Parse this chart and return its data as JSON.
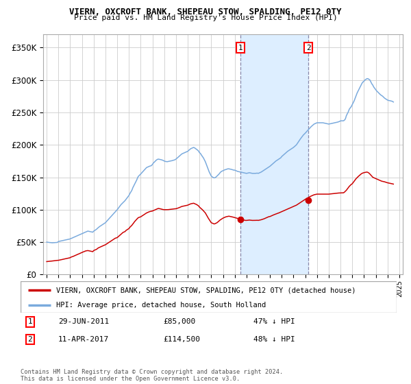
{
  "title": "VIERN, OXCROFT BANK, SHEPEAU STOW, SPALDING, PE12 0TY",
  "subtitle": "Price paid vs. HM Land Registry's House Price Index (HPI)",
  "ylim": [
    0,
    370000
  ],
  "yticks": [
    0,
    50000,
    100000,
    150000,
    200000,
    250000,
    300000,
    350000
  ],
  "ytick_labels": [
    "£0",
    "£50K",
    "£100K",
    "£150K",
    "£200K",
    "£250K",
    "£300K",
    "£350K"
  ],
  "sale1_date": "29-JUN-2011",
  "sale1_price": 85000,
  "sale1_label": "47% ↓ HPI",
  "sale2_date": "11-APR-2017",
  "sale2_price": 114500,
  "sale2_label": "48% ↓ HPI",
  "legend_property": "VIERN, OXCROFT BANK, SHEPEAU STOW, SPALDING, PE12 0TY (detached house)",
  "legend_hpi": "HPI: Average price, detached house, South Holland",
  "footnote": "Contains HM Land Registry data © Crown copyright and database right 2024.\nThis data is licensed under the Open Government Licence v3.0.",
  "property_color": "#cc0000",
  "hpi_color": "#7aaadd",
  "shade_color": "#ddeeff",
  "vline_color": "#8888aa",
  "grid_color": "#cccccc",
  "hpi_data": {
    "1995-01": 50000,
    "1995-02": 49800,
    "1995-03": 49600,
    "1995-04": 49500,
    "1995-05": 49300,
    "1995-06": 49100,
    "1995-07": 49000,
    "1995-08": 49100,
    "1995-09": 49150,
    "1995-10": 49200,
    "1995-11": 49400,
    "1995-12": 49600,
    "1996-01": 51000,
    "1996-02": 51300,
    "1996-03": 51600,
    "1996-04": 52000,
    "1996-05": 52300,
    "1996-06": 52600,
    "1996-07": 53000,
    "1996-08": 53300,
    "1996-09": 53600,
    "1996-10": 54000,
    "1996-11": 54300,
    "1996-12": 54600,
    "1997-01": 55000,
    "1997-02": 55700,
    "1997-03": 56300,
    "1997-04": 57000,
    "1997-05": 57700,
    "1997-06": 58300,
    "1997-07": 59000,
    "1997-08": 59700,
    "1997-09": 60300,
    "1997-10": 61000,
    "1997-11": 61700,
    "1997-12": 62300,
    "1998-01": 63000,
    "1998-02": 63700,
    "1998-03": 64300,
    "1998-04": 65000,
    "1998-05": 65700,
    "1998-06": 66300,
    "1998-07": 67000,
    "1998-08": 66700,
    "1998-09": 66300,
    "1998-10": 66000,
    "1998-11": 65700,
    "1998-12": 65300,
    "1999-01": 67000,
    "1999-02": 67800,
    "1999-03": 69000,
    "1999-04": 70000,
    "1999-05": 71500,
    "1999-06": 72800,
    "1999-07": 74000,
    "1999-08": 75000,
    "1999-09": 76000,
    "1999-10": 77000,
    "1999-11": 78000,
    "1999-12": 79000,
    "2000-01": 80000,
    "2000-02": 81700,
    "2000-03": 83300,
    "2000-04": 85000,
    "2000-05": 86700,
    "2000-06": 88300,
    "2000-07": 90000,
    "2000-08": 91700,
    "2000-09": 93300,
    "2000-10": 95000,
    "2000-11": 96700,
    "2000-12": 98300,
    "2001-01": 100000,
    "2001-02": 102000,
    "2001-03": 104000,
    "2001-04": 106000,
    "2001-05": 108000,
    "2001-06": 109500,
    "2001-07": 111000,
    "2001-08": 112500,
    "2001-09": 114000,
    "2001-10": 116000,
    "2001-11": 118000,
    "2001-12": 120000,
    "2002-01": 122000,
    "2002-02": 125000,
    "2002-03": 127500,
    "2002-04": 130000,
    "2002-05": 134000,
    "2002-06": 137000,
    "2002-07": 140000,
    "2002-08": 143000,
    "2002-09": 146000,
    "2002-10": 150000,
    "2002-11": 152000,
    "2002-12": 153500,
    "2003-01": 155000,
    "2003-02": 156700,
    "2003-03": 158300,
    "2003-04": 160000,
    "2003-05": 161700,
    "2003-06": 163300,
    "2003-07": 165000,
    "2003-08": 165700,
    "2003-09": 166300,
    "2003-10": 167000,
    "2003-11": 167500,
    "2003-12": 168000,
    "2004-01": 170000,
    "2004-02": 172000,
    "2004-03": 173500,
    "2004-04": 175000,
    "2004-05": 176500,
    "2004-06": 177500,
    "2004-07": 178000,
    "2004-08": 177700,
    "2004-09": 177300,
    "2004-10": 177000,
    "2004-11": 176500,
    "2004-12": 176000,
    "2005-01": 175000,
    "2005-02": 174500,
    "2005-03": 174200,
    "2005-04": 174000,
    "2005-05": 174300,
    "2005-06": 174600,
    "2005-07": 175000,
    "2005-08": 175300,
    "2005-09": 175600,
    "2005-10": 176000,
    "2005-11": 176500,
    "2005-12": 177000,
    "2006-01": 178000,
    "2006-02": 179300,
    "2006-03": 180600,
    "2006-04": 182000,
    "2006-05": 183300,
    "2006-06": 184700,
    "2006-07": 186000,
    "2006-08": 186700,
    "2006-09": 187300,
    "2006-10": 188000,
    "2006-11": 188700,
    "2006-12": 189300,
    "2007-01": 190000,
    "2007-02": 191300,
    "2007-03": 192700,
    "2007-04": 194000,
    "2007-05": 194700,
    "2007-06": 195300,
    "2007-07": 196000,
    "2007-08": 195300,
    "2007-09": 194300,
    "2007-10": 193000,
    "2007-11": 192000,
    "2007-12": 190500,
    "2008-01": 188000,
    "2008-02": 186700,
    "2008-03": 184300,
    "2008-04": 182000,
    "2008-05": 180000,
    "2008-06": 177000,
    "2008-07": 174000,
    "2008-08": 170000,
    "2008-09": 166000,
    "2008-10": 162000,
    "2008-11": 158000,
    "2008-12": 155000,
    "2009-01": 152000,
    "2009-02": 150700,
    "2009-03": 149700,
    "2009-04": 149000,
    "2009-05": 149500,
    "2009-06": 150500,
    "2009-07": 152000,
    "2009-08": 153500,
    "2009-09": 155000,
    "2009-10": 157000,
    "2009-11": 158500,
    "2009-12": 159500,
    "2010-01": 160000,
    "2010-02": 161000,
    "2010-03": 161500,
    "2010-04": 162000,
    "2010-05": 162500,
    "2010-06": 163000,
    "2010-07": 163000,
    "2010-08": 162700,
    "2010-09": 162300,
    "2010-10": 162000,
    "2010-11": 161500,
    "2010-12": 161000,
    "2011-01": 161000,
    "2011-02": 160300,
    "2011-03": 159700,
    "2011-04": 159000,
    "2011-05": 158700,
    "2011-06": 158300,
    "2011-07": 158000,
    "2011-08": 157700,
    "2011-09": 157300,
    "2011-10": 157000,
    "2011-11": 156700,
    "2011-12": 156300,
    "2012-01": 156000,
    "2012-02": 156300,
    "2012-03": 156700,
    "2012-04": 157000,
    "2012-05": 156700,
    "2012-06": 156300,
    "2012-07": 156000,
    "2012-08": 156000,
    "2012-09": 156000,
    "2012-10": 156000,
    "2012-11": 156200,
    "2012-12": 156400,
    "2013-01": 156000,
    "2013-02": 156700,
    "2013-03": 157300,
    "2013-04": 158000,
    "2013-05": 159000,
    "2013-06": 160000,
    "2013-07": 161000,
    "2013-08": 162000,
    "2013-09": 163000,
    "2013-10": 164000,
    "2013-11": 165000,
    "2013-12": 166000,
    "2014-01": 167000,
    "2014-02": 168300,
    "2014-03": 169700,
    "2014-04": 171000,
    "2014-05": 172300,
    "2014-06": 173700,
    "2014-07": 175000,
    "2014-08": 176000,
    "2014-09": 177000,
    "2014-10": 178000,
    "2014-11": 179000,
    "2014-12": 180000,
    "2015-01": 182000,
    "2015-02": 183300,
    "2015-03": 184700,
    "2015-04": 186000,
    "2015-05": 187300,
    "2015-06": 188700,
    "2015-07": 190000,
    "2015-08": 191000,
    "2015-09": 192000,
    "2015-10": 193000,
    "2015-11": 194000,
    "2015-12": 195000,
    "2016-01": 196000,
    "2016-02": 197300,
    "2016-03": 198700,
    "2016-04": 200000,
    "2016-05": 202300,
    "2016-06": 204700,
    "2016-07": 207000,
    "2016-08": 209000,
    "2016-09": 211000,
    "2016-10": 213000,
    "2016-11": 215000,
    "2016-12": 216500,
    "2017-01": 218000,
    "2017-02": 219700,
    "2017-03": 221300,
    "2017-04": 223000,
    "2017-05": 224700,
    "2017-06": 226300,
    "2017-07": 228000,
    "2017-08": 229300,
    "2017-09": 230700,
    "2017-10": 232000,
    "2017-11": 232700,
    "2017-12": 233300,
    "2018-01": 234000,
    "2018-02": 234000,
    "2018-03": 234000,
    "2018-04": 234000,
    "2018-05": 234000,
    "2018-06": 234000,
    "2018-07": 234000,
    "2018-08": 233700,
    "2018-09": 233300,
    "2018-10": 233000,
    "2018-11": 232700,
    "2018-12": 232300,
    "2019-01": 232000,
    "2019-02": 232300,
    "2019-03": 232700,
    "2019-04": 233000,
    "2019-05": 233300,
    "2019-06": 233700,
    "2019-07": 234000,
    "2019-08": 234300,
    "2019-09": 234700,
    "2019-10": 235000,
    "2019-11": 235500,
    "2019-12": 236000,
    "2020-01": 237000,
    "2020-02": 237000,
    "2020-03": 237000,
    "2020-04": 237000,
    "2020-05": 238000,
    "2020-06": 240000,
    "2020-07": 245000,
    "2020-08": 248000,
    "2020-09": 251000,
    "2020-10": 255000,
    "2020-11": 257000,
    "2020-12": 259000,
    "2021-01": 262000,
    "2021-02": 265000,
    "2021-03": 268000,
    "2021-04": 272000,
    "2021-05": 276000,
    "2021-06": 280000,
    "2021-07": 283000,
    "2021-08": 286000,
    "2021-09": 289000,
    "2021-10": 292000,
    "2021-11": 295000,
    "2021-12": 297000,
    "2022-01": 298000,
    "2022-02": 300000,
    "2022-03": 301000,
    "2022-04": 302000,
    "2022-05": 302000,
    "2022-06": 301000,
    "2022-07": 300000,
    "2022-08": 297000,
    "2022-09": 294000,
    "2022-10": 292000,
    "2022-11": 289000,
    "2022-12": 287000,
    "2023-01": 285000,
    "2023-02": 283000,
    "2023-03": 281500,
    "2023-04": 280000,
    "2023-05": 278500,
    "2023-06": 277000,
    "2023-07": 276000,
    "2023-08": 275000,
    "2023-09": 273500,
    "2023-10": 272000,
    "2023-11": 271000,
    "2023-12": 270000,
    "2024-01": 269000,
    "2024-02": 268500,
    "2024-03": 268200,
    "2024-04": 268000,
    "2024-05": 267500,
    "2024-06": 267000,
    "2024-07": 266000
  },
  "property_data": {
    "1995-01": 20000,
    "1995-02": 20200,
    "1995-03": 20300,
    "1995-04": 20500,
    "1995-05": 20600,
    "1995-06": 20800,
    "1995-07": 21000,
    "1995-08": 21100,
    "1995-09": 21300,
    "1995-10": 21500,
    "1995-11": 21700,
    "1995-12": 21900,
    "1996-01": 22000,
    "1996-02": 22300,
    "1996-03": 22700,
    "1996-04": 23000,
    "1996-05": 23300,
    "1996-06": 23700,
    "1996-07": 24000,
    "1996-08": 24300,
    "1996-09": 24700,
    "1996-10": 25000,
    "1996-11": 25300,
    "1996-12": 25700,
    "1997-01": 26000,
    "1997-02": 27000,
    "1997-03": 27500,
    "1997-04": 28000,
    "1997-05": 28700,
    "1997-06": 29300,
    "1997-07": 30000,
    "1997-08": 30700,
    "1997-09": 31300,
    "1997-10": 32000,
    "1997-11": 32700,
    "1997-12": 33300,
    "1998-01": 34000,
    "1998-02": 34700,
    "1998-03": 35300,
    "1998-04": 36000,
    "1998-05": 36500,
    "1998-06": 36800,
    "1998-07": 37000,
    "1998-08": 36700,
    "1998-09": 36300,
    "1998-10": 36000,
    "1998-11": 35700,
    "1998-12": 35300,
    "1999-01": 37000,
    "1999-02": 37700,
    "1999-03": 38300,
    "1999-04": 39000,
    "1999-05": 40300,
    "1999-06": 41300,
    "1999-07": 42000,
    "1999-08": 42700,
    "1999-09": 43300,
    "1999-10": 44000,
    "1999-11": 44700,
    "1999-12": 45300,
    "2000-01": 46000,
    "2000-02": 47000,
    "2000-03": 48000,
    "2000-04": 49000,
    "2000-05": 50000,
    "2000-06": 51000,
    "2000-07": 52000,
    "2000-08": 53000,
    "2000-09": 54000,
    "2000-10": 55000,
    "2000-11": 56000,
    "2000-12": 56500,
    "2001-01": 57000,
    "2001-02": 58300,
    "2001-03": 59700,
    "2001-04": 61000,
    "2001-05": 62300,
    "2001-06": 63700,
    "2001-07": 65000,
    "2001-08": 65700,
    "2001-09": 66300,
    "2001-10": 68000,
    "2001-11": 69000,
    "2001-12": 70000,
    "2002-01": 71000,
    "2002-02": 73000,
    "2002-03": 74500,
    "2002-04": 76000,
    "2002-05": 78000,
    "2002-06": 80000,
    "2002-07": 82000,
    "2002-08": 83700,
    "2002-09": 85300,
    "2002-10": 87000,
    "2002-11": 88000,
    "2002-12": 88500,
    "2003-01": 89000,
    "2003-02": 90000,
    "2003-03": 91000,
    "2003-04": 92000,
    "2003-05": 93000,
    "2003-06": 94000,
    "2003-07": 95000,
    "2003-08": 95700,
    "2003-09": 96300,
    "2003-10": 97000,
    "2003-11": 97300,
    "2003-12": 97700,
    "2004-01": 98000,
    "2004-02": 98700,
    "2004-03": 99300,
    "2004-04": 100000,
    "2004-05": 100700,
    "2004-06": 101300,
    "2004-07": 102000,
    "2004-08": 101700,
    "2004-09": 101300,
    "2004-10": 101000,
    "2004-11": 100500,
    "2004-12": 100200,
    "2005-01": 100000,
    "2005-02": 100000,
    "2005-03": 100000,
    "2005-04": 100000,
    "2005-05": 100100,
    "2005-06": 100300,
    "2005-07": 100500,
    "2005-08": 100600,
    "2005-09": 100800,
    "2005-10": 101000,
    "2005-11": 101200,
    "2005-12": 101400,
    "2006-01": 101500,
    "2006-02": 102000,
    "2006-03": 102500,
    "2006-04": 103000,
    "2006-05": 103700,
    "2006-06": 104300,
    "2006-07": 105000,
    "2006-08": 105300,
    "2006-09": 105700,
    "2006-10": 106000,
    "2006-11": 106300,
    "2006-12": 106700,
    "2007-01": 107000,
    "2007-02": 107700,
    "2007-03": 108300,
    "2007-04": 109000,
    "2007-05": 109300,
    "2007-06": 109700,
    "2007-07": 110000,
    "2007-08": 109300,
    "2007-09": 108700,
    "2007-10": 108000,
    "2007-11": 107000,
    "2007-12": 106000,
    "2008-01": 104000,
    "2008-02": 102700,
    "2008-03": 101300,
    "2008-04": 100000,
    "2008-05": 98300,
    "2008-06": 96700,
    "2008-07": 95000,
    "2008-08": 92300,
    "2008-09": 89700,
    "2008-10": 87000,
    "2008-11": 84700,
    "2008-12": 82300,
    "2009-01": 80000,
    "2009-02": 79300,
    "2009-03": 78700,
    "2009-04": 78000,
    "2009-05": 78500,
    "2009-06": 79300,
    "2009-07": 80000,
    "2009-08": 81300,
    "2009-09": 82700,
    "2009-10": 84000,
    "2009-11": 85000,
    "2009-12": 86000,
    "2010-01": 87000,
    "2010-02": 87700,
    "2010-03": 88300,
    "2010-04": 89000,
    "2010-05": 89300,
    "2010-06": 89700,
    "2010-07": 90000,
    "2010-08": 89700,
    "2010-09": 89300,
    "2010-10": 89000,
    "2010-11": 88700,
    "2010-12": 88300,
    "2011-01": 88000,
    "2011-02": 87500,
    "2011-03": 87000,
    "2011-04": 86500,
    "2011-05": 86000,
    "2011-06": 85500,
    "2011-07": 85000,
    "2011-08": 84700,
    "2011-09": 84300,
    "2011-10": 84000,
    "2011-11": 83700,
    "2011-12": 83500,
    "2012-01": 83500,
    "2012-02": 83700,
    "2012-03": 83800,
    "2012-04": 84000,
    "2012-05": 83800,
    "2012-06": 83700,
    "2012-07": 83500,
    "2012-08": 83500,
    "2012-09": 83500,
    "2012-10": 83500,
    "2012-11": 83600,
    "2012-12": 83700,
    "2013-01": 83500,
    "2013-02": 83800,
    "2013-03": 84100,
    "2013-04": 84500,
    "2013-05": 85000,
    "2013-06": 85500,
    "2013-07": 86000,
    "2013-08": 86700,
    "2013-09": 87300,
    "2013-10": 88000,
    "2013-11": 88700,
    "2013-12": 89300,
    "2014-01": 89500,
    "2014-02": 90200,
    "2014-03": 90800,
    "2014-04": 91500,
    "2014-05": 92200,
    "2014-06": 92800,
    "2014-07": 93500,
    "2014-08": 94000,
    "2014-09": 94500,
    "2014-10": 95000,
    "2014-11": 95700,
    "2014-12": 96300,
    "2015-01": 97000,
    "2015-02": 97700,
    "2015-03": 98300,
    "2015-04": 99000,
    "2015-05": 99700,
    "2015-06": 100300,
    "2015-07": 101000,
    "2015-08": 101700,
    "2015-09": 102300,
    "2015-10": 103000,
    "2015-11": 103700,
    "2015-12": 104300,
    "2016-01": 105000,
    "2016-02": 105700,
    "2016-03": 106300,
    "2016-04": 107000,
    "2016-05": 108000,
    "2016-06": 109000,
    "2016-07": 110000,
    "2016-08": 111000,
    "2016-09": 112000,
    "2016-10": 113000,
    "2016-11": 114000,
    "2016-12": 115000,
    "2017-01": 116000,
    "2017-02": 117000,
    "2017-03": 117700,
    "2017-04": 118500,
    "2017-05": 119500,
    "2017-06": 120300,
    "2017-07": 121000,
    "2017-08": 121700,
    "2017-09": 122300,
    "2017-10": 123000,
    "2017-11": 123300,
    "2017-12": 123700,
    "2018-01": 124000,
    "2018-02": 124000,
    "2018-03": 124000,
    "2018-04": 124000,
    "2018-05": 124000,
    "2018-06": 124000,
    "2018-07": 124000,
    "2018-08": 124000,
    "2018-09": 124000,
    "2018-10": 124000,
    "2018-11": 124000,
    "2018-12": 124000,
    "2019-01": 124000,
    "2019-02": 124200,
    "2019-03": 124300,
    "2019-04": 124500,
    "2019-05": 124700,
    "2019-06": 124800,
    "2019-07": 125000,
    "2019-08": 125200,
    "2019-09": 125300,
    "2019-10": 125500,
    "2019-11": 125700,
    "2019-12": 125800,
    "2020-01": 126000,
    "2020-02": 126000,
    "2020-03": 126000,
    "2020-04": 126000,
    "2020-05": 127000,
    "2020-06": 128500,
    "2020-07": 130000,
    "2020-08": 132000,
    "2020-09": 134000,
    "2020-10": 136000,
    "2020-11": 137500,
    "2020-12": 139000,
    "2021-01": 140000,
    "2021-02": 142000,
    "2021-03": 144000,
    "2021-04": 146000,
    "2021-05": 148000,
    "2021-06": 149500,
    "2021-07": 151000,
    "2021-08": 152300,
    "2021-09": 153700,
    "2021-10": 155000,
    "2021-11": 156000,
    "2021-12": 156700,
    "2022-01": 157000,
    "2022-02": 157500,
    "2022-03": 157800,
    "2022-04": 158000,
    "2022-05": 157500,
    "2022-06": 156500,
    "2022-07": 155000,
    "2022-08": 153300,
    "2022-09": 151700,
    "2022-10": 150000,
    "2022-11": 149300,
    "2022-12": 148700,
    "2023-01": 148000,
    "2023-02": 147300,
    "2023-03": 146700,
    "2023-04": 146000,
    "2023-05": 145300,
    "2023-06": 144700,
    "2023-07": 144000,
    "2023-08": 143700,
    "2023-09": 143300,
    "2023-10": 143000,
    "2023-11": 142500,
    "2023-12": 142000,
    "2024-01": 141500,
    "2024-02": 141200,
    "2024-03": 140800,
    "2024-04": 140500,
    "2024-05": 140200,
    "2024-06": 139800,
    "2024-07": 139500
  },
  "sale1_x": 2011.495,
  "sale2_x": 2017.27,
  "sale1_y": 85000,
  "sale2_y": 114500,
  "xlim_left": 1994.7,
  "xlim_right": 2025.3
}
